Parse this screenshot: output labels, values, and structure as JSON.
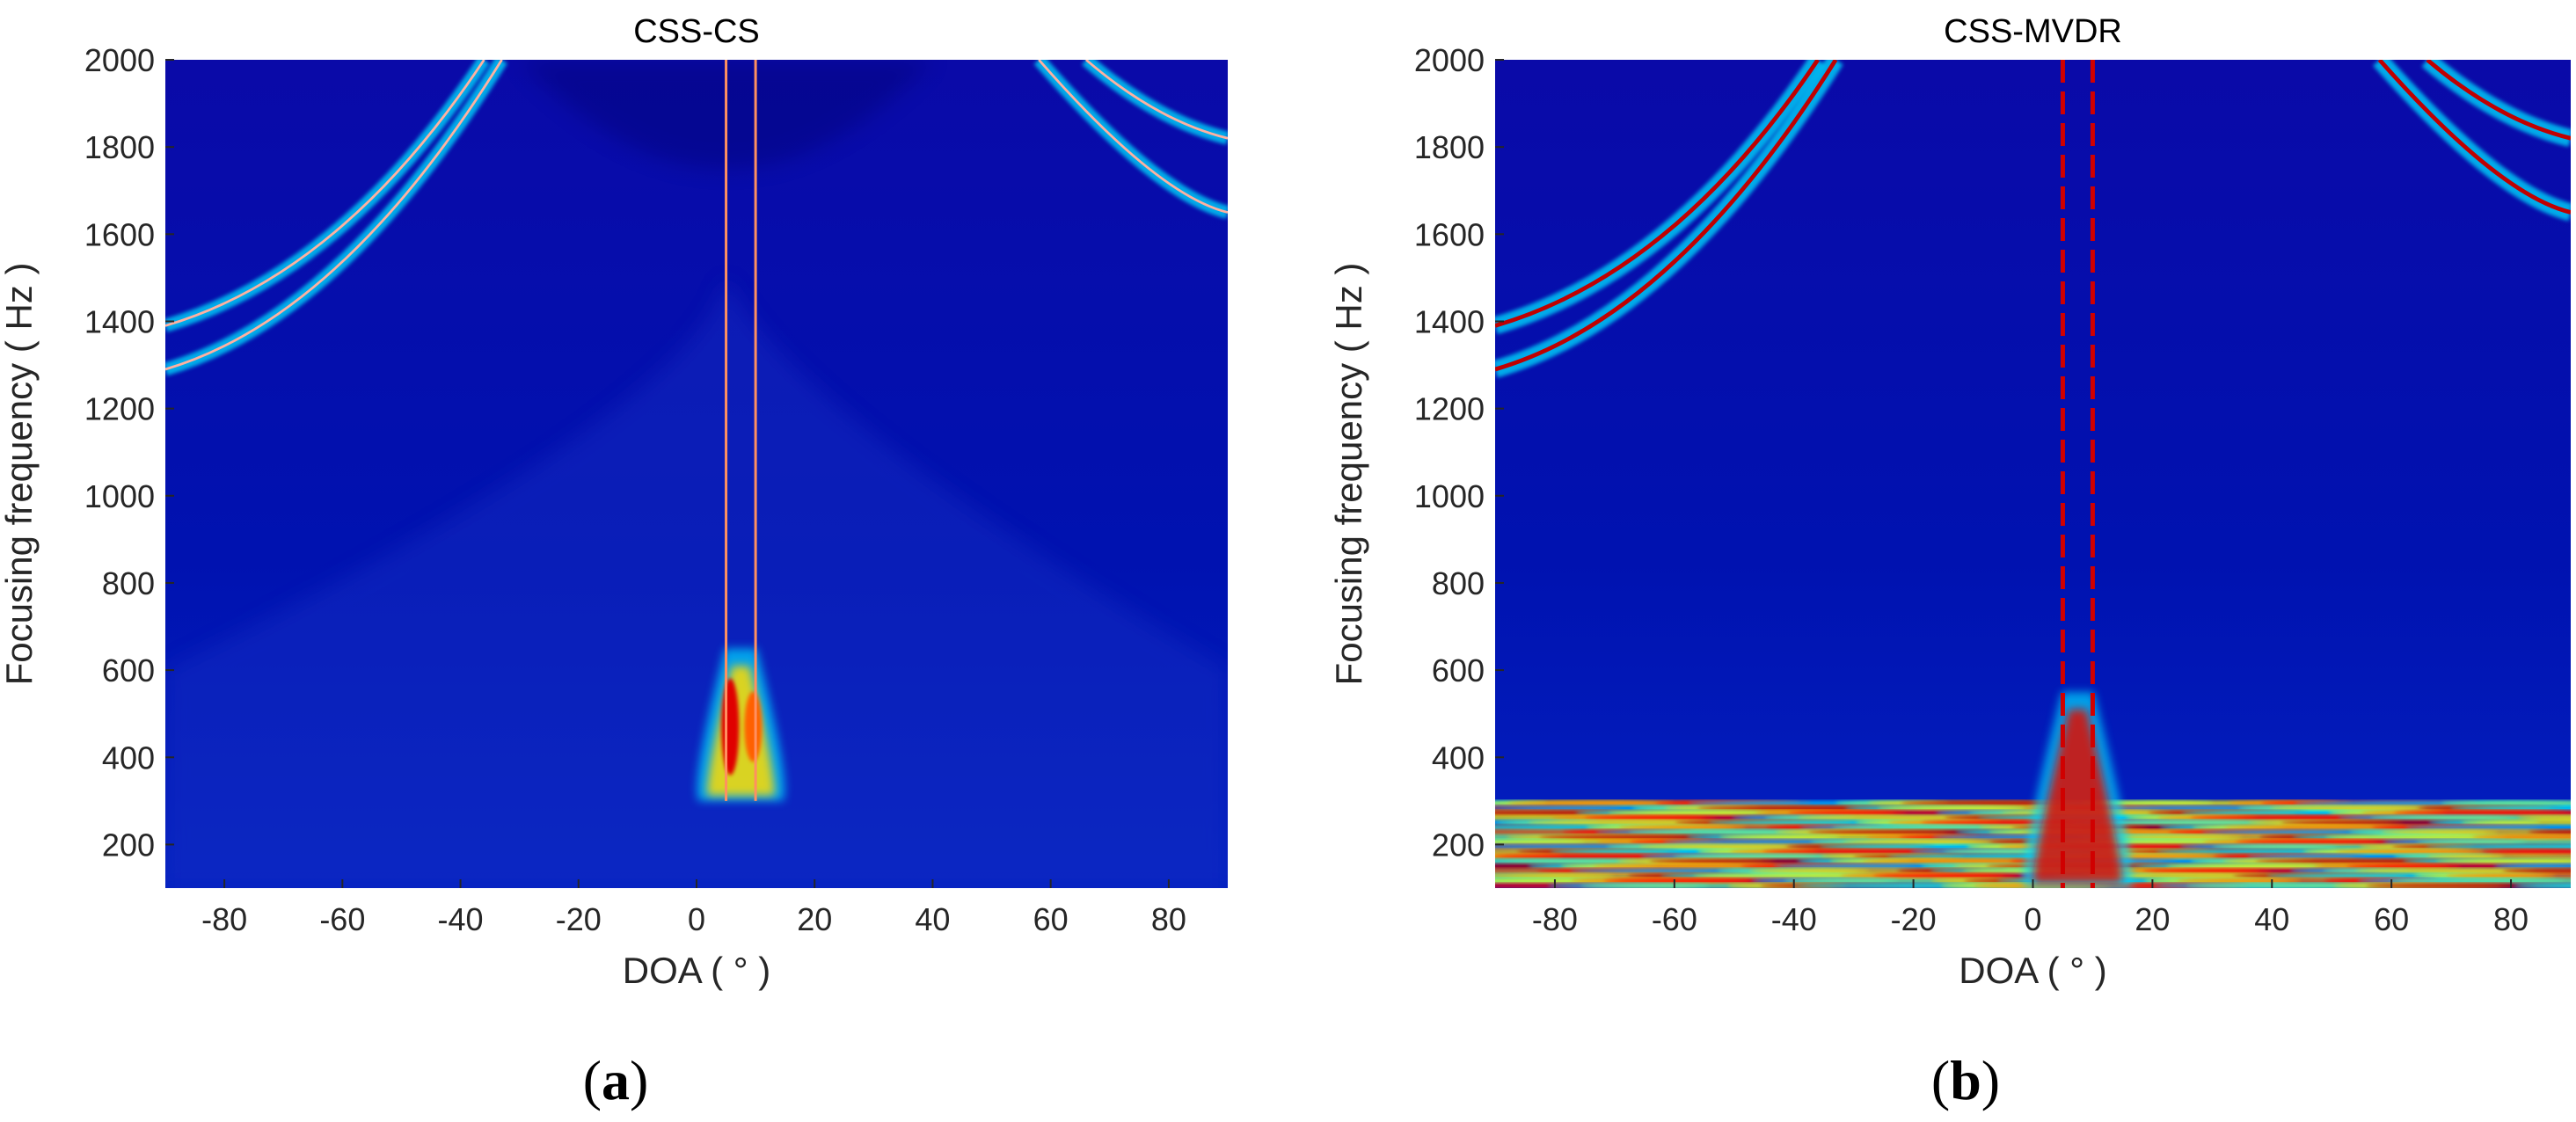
{
  "colors": {
    "background": "#000096",
    "colormap": "jet",
    "jet_stops": [
      "#00008f",
      "#0000ff",
      "#00ffff",
      "#ffff00",
      "#ff0000",
      "#800000"
    ]
  },
  "chart_data": [
    {
      "type": "heatmap",
      "panel_label": "a",
      "title": "CSS-CS",
      "xlabel": "DOA ( ° )",
      "ylabel": "Focusing frequency ( Hz )",
      "xlim": [
        -90,
        90
      ],
      "ylim": [
        100,
        2000
      ],
      "xticks": [
        -80,
        -60,
        -40,
        -20,
        0,
        20,
        40,
        60,
        80
      ],
      "yticks": [
        200,
        400,
        600,
        800,
        1000,
        1200,
        1400,
        1600,
        1800,
        2000
      ],
      "colormap": "jet",
      "features": {
        "source_doas": [
          5,
          10
        ],
        "source_line_extent_hz": [
          300,
          2000
        ],
        "low_freq_blob_hz": [
          300,
          650
        ],
        "grating_lobes_left": [
          {
            "y_at_edge": 1390
          },
          {
            "y_at_edge": 1290
          }
        ],
        "grating_lobes_right": [
          {
            "y_at_edge": 1820
          },
          {
            "y_at_edge": 1650
          }
        ],
        "lower_band_noise": false
      }
    },
    {
      "type": "heatmap",
      "panel_label": "b",
      "title": "CSS-MVDR",
      "xlabel": "DOA ( ° )",
      "ylabel": "Focusing frequency ( Hz )",
      "xlim": [
        -90,
        90
      ],
      "ylim": [
        100,
        2000
      ],
      "xticks": [
        -80,
        -60,
        -40,
        -20,
        0,
        20,
        40,
        60,
        80
      ],
      "yticks": [
        200,
        400,
        600,
        800,
        1000,
        1200,
        1400,
        1600,
        1800,
        2000
      ],
      "colormap": "jet",
      "features": {
        "source_doas": [
          5,
          10
        ],
        "source_line_extent_hz": [
          100,
          2000
        ],
        "low_freq_blob_hz": [
          100,
          550
        ],
        "grating_lobes_left": [
          {
            "y_at_edge": 1390
          },
          {
            "y_at_edge": 1290
          }
        ],
        "grating_lobes_right": [
          {
            "y_at_edge": 1820
          },
          {
            "y_at_edge": 1650
          }
        ],
        "lower_band_noise": true,
        "lower_band_hz": [
          100,
          300
        ]
      }
    }
  ]
}
